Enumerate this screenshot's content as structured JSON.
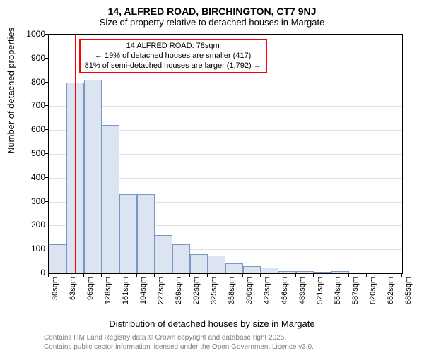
{
  "title_main": "14, ALFRED ROAD, BIRCHINGTON, CT7 9NJ",
  "title_sub": "Size of property relative to detached houses in Margate",
  "ylabel": "Number of detached properties",
  "xlabel": "Distribution of detached houses by size in Margate",
  "footer_line1": "Contains HM Land Registry data © Crown copyright and database right 2025.",
  "footer_line2": "Contains public sector information licensed under the Open Government Licence v3.0.",
  "annotation": {
    "line1": "14 ALFRED ROAD: 78sqm",
    "line2": "← 19% of detached houses are smaller (417)",
    "line3": "81% of semi-detached houses are larger (1,792) →"
  },
  "chart": {
    "type": "histogram",
    "background_color": "#ffffff",
    "grid_color": "#e0e0e0",
    "bar_fill_color": "#dce4f2",
    "bar_border_color": "#7b96c4",
    "marker_color": "#ff0000",
    "y_min": 0,
    "y_max": 1000,
    "y_ticks": [
      0,
      100,
      200,
      300,
      400,
      500,
      600,
      700,
      800,
      900,
      1000
    ],
    "x_tick_labels": [
      "30sqm",
      "63sqm",
      "96sqm",
      "128sqm",
      "161sqm",
      "194sqm",
      "227sqm",
      "259sqm",
      "292sqm",
      "325sqm",
      "358sqm",
      "390sqm",
      "423sqm",
      "456sqm",
      "489sqm",
      "521sqm",
      "554sqm",
      "587sqm",
      "620sqm",
      "652sqm",
      "685sqm"
    ],
    "bars": [
      120,
      800,
      810,
      620,
      330,
      330,
      160,
      120,
      80,
      75,
      40,
      30,
      25,
      10,
      10,
      5,
      10,
      0,
      0,
      0,
      0,
      0
    ],
    "bar_count_display": 20,
    "marker_x_value": 78,
    "x_min_value": 30,
    "x_max_value": 685,
    "title_fontsize": 14,
    "subtitle_fontsize": 13,
    "label_fontsize": 13,
    "tick_fontsize": 12,
    "annotation_fontsize": 11,
    "footer_fontsize": 10
  }
}
